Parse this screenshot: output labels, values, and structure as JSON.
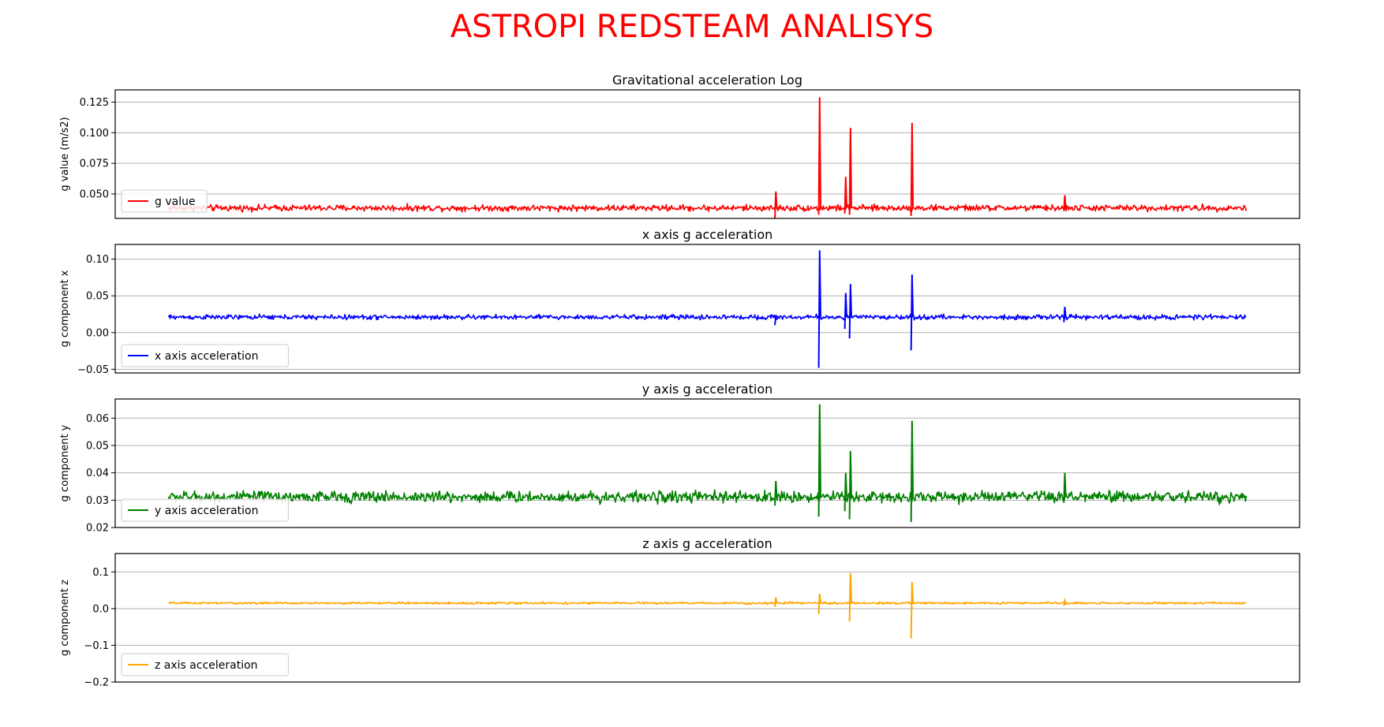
{
  "figure": {
    "title": "ASTROPI REDSTEAM ANALISYS",
    "title_color": "#ff0000"
  },
  "chart_data": [
    {
      "type": "line",
      "title": "Gravitational acceleration Log",
      "ylabel": "g value (m/s2)",
      "xlabel": "",
      "ylim": [
        0.03,
        0.135
      ],
      "yticks": [
        "0.050",
        "0.075",
        "0.100",
        "0.125"
      ],
      "ytick_values": [
        0.05,
        0.075,
        0.1,
        0.125
      ],
      "grid": true,
      "legend_position": "lower-left",
      "series": [
        {
          "name": "g value",
          "color": "#ff0000"
        }
      ],
      "baseline": 0.0385,
      "noise": 0.0022,
      "spikes": [
        [
          0.557,
          0.052,
          0.03
        ],
        [
          0.594,
          0.129,
          0.033
        ],
        [
          0.616,
          0.064,
          0.034
        ],
        [
          0.62,
          0.104,
          0.033
        ],
        [
          0.672,
          0.108,
          0.032
        ],
        [
          0.801,
          0.049,
          0.036
        ]
      ]
    },
    {
      "type": "line",
      "title": "x axis g acceleration",
      "ylabel": "g component x",
      "xlabel": "",
      "ylim": [
        -0.055,
        0.12
      ],
      "yticks": [
        "−0.05",
        "0.00",
        "0.05",
        "0.10"
      ],
      "ytick_values": [
        -0.05,
        0.0,
        0.05,
        0.1
      ],
      "grid": true,
      "legend_position": "lower-left",
      "series": [
        {
          "name": "x axis acceleration",
          "color": "#0000ff"
        }
      ],
      "baseline": 0.021,
      "noise": 0.0028,
      "spikes": [
        [
          0.557,
          0.024,
          0.01
        ],
        [
          0.594,
          0.112,
          -0.048
        ],
        [
          0.616,
          0.054,
          0.005
        ],
        [
          0.62,
          0.066,
          -0.008
        ],
        [
          0.672,
          0.079,
          -0.024
        ],
        [
          0.801,
          0.035,
          0.014
        ]
      ]
    },
    {
      "type": "line",
      "title": "y axis g acceleration",
      "ylabel": "g component y",
      "xlabel": "",
      "ylim": [
        0.02,
        0.067
      ],
      "yticks": [
        "0.02",
        "0.03",
        "0.04",
        "0.05",
        "0.06"
      ],
      "ytick_values": [
        0.02,
        0.03,
        0.04,
        0.05,
        0.06
      ],
      "grid": true,
      "legend_position": "lower-left",
      "series": [
        {
          "name": "y axis acceleration",
          "color": "#008000"
        }
      ],
      "baseline": 0.0312,
      "noise": 0.0018,
      "spikes": [
        [
          0.557,
          0.037,
          0.028
        ],
        [
          0.594,
          0.065,
          0.024
        ],
        [
          0.616,
          0.04,
          0.026
        ],
        [
          0.62,
          0.048,
          0.023
        ],
        [
          0.672,
          0.059,
          0.022
        ],
        [
          0.801,
          0.04,
          0.029
        ]
      ]
    },
    {
      "type": "line",
      "title": "z axis g acceleration",
      "ylabel": "g component z",
      "xlabel": "",
      "ylim": [
        -0.2,
        0.15
      ],
      "yticks": [
        "−0.2",
        "−0.1",
        "0.0",
        "0.1"
      ],
      "ytick_values": [
        -0.2,
        -0.1,
        0.0,
        0.1
      ],
      "grid": true,
      "legend_position": "lower-left",
      "series": [
        {
          "name": "z axis acceleration",
          "color": "#ffa500"
        }
      ],
      "baseline": 0.015,
      "noise": 0.0025,
      "spikes": [
        [
          0.557,
          0.03,
          0.005
        ],
        [
          0.594,
          0.04,
          -0.015
        ],
        [
          0.62,
          0.097,
          -0.035
        ],
        [
          0.672,
          0.072,
          -0.081
        ],
        [
          0.801,
          0.022,
          0.008
        ]
      ]
    }
  ]
}
